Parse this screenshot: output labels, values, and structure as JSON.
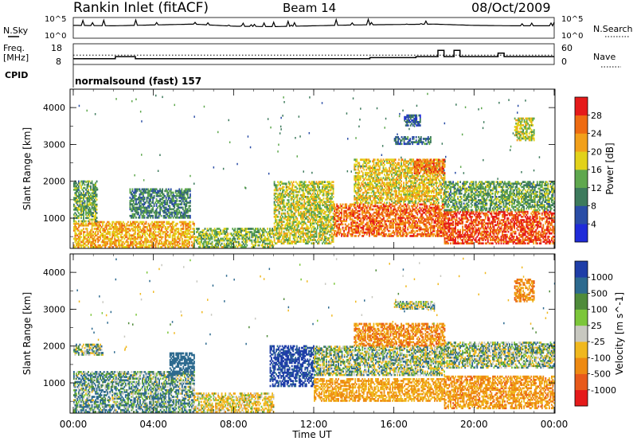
{
  "header": {
    "title": "Rankin Inlet (fitACF)",
    "beam": "Beam 14",
    "date": "08/Oct/2009"
  },
  "strip_labels": {
    "nsky": "N.Sky",
    "nsky_top": "10^5",
    "nsky_bottom": "10^0",
    "nsearch": "N.Search",
    "nsearch_top": "10^5",
    "nsearch_bottom": "10^0",
    "freq": "Freq.",
    "freq_unit": "[MHz]",
    "freq_top": "18",
    "freq_bottom": "8",
    "nave": "Nave",
    "nave_top": "60",
    "nave_bottom": "0",
    "cpid": "CPID",
    "cpid_value": "normalsound (fast) 157"
  },
  "colors": {
    "power_scale": [
      "#1f2bd9",
      "#2a4da6",
      "#3d7a5c",
      "#5fa84e",
      "#e2d21a",
      "#f2a01a",
      "#ee6b12",
      "#e51a1a"
    ],
    "velocity_scale": [
      "#1f3ea8",
      "#2d6a8f",
      "#4f8b3a",
      "#7cc63a",
      "#c8c8c0",
      "#f0b81e",
      "#ee8a12",
      "#e8591a",
      "#e51a1a"
    ],
    "ground_scatter": "#bdbdb5"
  },
  "chart_data": [
    {
      "type": "line",
      "name": "N.Sky",
      "x": [
        "00:00",
        "02:00",
        "04:00",
        "06:00",
        "08:00",
        "10:00",
        "12:00",
        "14:00",
        "16:00",
        "18:00",
        "20:00",
        "22:00",
        "00:00"
      ],
      "values": [
        3.1,
        3.0,
        3.2,
        3.4,
        2.9,
        2.8,
        3.0,
        3.2,
        3.3,
        3.4,
        3.1,
        3.0,
        3.0
      ],
      "ylim": [
        0,
        5
      ],
      "ylabel": "N.Sky"
    },
    {
      "type": "line",
      "name": "Freq",
      "x_hours": [
        0,
        2.1,
        2.1,
        3.1,
        3.1,
        14.8,
        14.8,
        17.1,
        17.1,
        18.2,
        18.2,
        18.5,
        18.5,
        19.0,
        19.0,
        19.3,
        19.3,
        21.2,
        21.2,
        21.5,
        21.5,
        24
      ],
      "values": [
        10.8,
        10.8,
        11.8,
        11.8,
        10.8,
        10.8,
        11.3,
        11.3,
        11.8,
        11.8,
        14.8,
        14.8,
        11.8,
        11.8,
        14.8,
        14.8,
        11.8,
        11.8,
        13.5,
        13.5,
        11.8,
        11.8
      ],
      "nave_reference": 27,
      "ylim": [
        8,
        18
      ],
      "ylabel": "Freq. [MHz]"
    },
    {
      "type": "heatmap",
      "title": "Power",
      "xlabel": "Time UT",
      "ylabel": "Slant Range [km]",
      "xlim": [
        0,
        24
      ],
      "ylim": [
        180,
        4500
      ],
      "xticks": [
        "00:00",
        "04:00",
        "08:00",
        "12:00",
        "16:00",
        "20:00",
        "00:00"
      ],
      "yticks": [
        "1000",
        "2000",
        "3000",
        "4000"
      ],
      "colorbar_label": "Power [dB]",
      "colorbar_ticks": [
        "4",
        "8",
        "12",
        "16",
        "20",
        "24",
        "28"
      ],
      "clim": [
        0,
        30
      ],
      "regions": [
        {
          "t0": 0.0,
          "t1": 6.0,
          "r0": 200,
          "r1": 900,
          "value": 20
        },
        {
          "t0": 0.0,
          "t1": 1.2,
          "r0": 900,
          "r1": 2000,
          "value": 12
        },
        {
          "t0": 2.8,
          "t1": 5.8,
          "r0": 1000,
          "r1": 1800,
          "value": 10
        },
        {
          "t0": 6.0,
          "t1": 10.0,
          "r0": 200,
          "r1": 700,
          "value": 14
        },
        {
          "t0": 10.0,
          "t1": 13.0,
          "r0": 300,
          "r1": 2000,
          "value": 16
        },
        {
          "t0": 13.0,
          "t1": 18.5,
          "r0": 500,
          "r1": 1400,
          "value": 24
        },
        {
          "t0": 14.0,
          "t1": 18.5,
          "r0": 1400,
          "r1": 2600,
          "value": 18
        },
        {
          "t0": 17.0,
          "t1": 18.5,
          "r0": 2200,
          "r1": 2600,
          "value": 24
        },
        {
          "t0": 18.5,
          "t1": 24.0,
          "r0": 300,
          "r1": 1200,
          "value": 26
        },
        {
          "t0": 18.5,
          "t1": 24.0,
          "r0": 1200,
          "r1": 2000,
          "value": 12
        },
        {
          "t0": 16.0,
          "t1": 17.8,
          "r0": 3000,
          "r1": 3200,
          "value": 8
        },
        {
          "t0": 16.5,
          "t1": 17.3,
          "r0": 3500,
          "r1": 3800,
          "value": 6
        },
        {
          "t0": 22.0,
          "t1": 23.0,
          "r0": 3100,
          "r1": 3700,
          "value": 16
        }
      ]
    },
    {
      "type": "heatmap",
      "title": "Velocity",
      "xlabel": "Time UT",
      "ylabel": "Slant Range [km]",
      "xlim": [
        0,
        24
      ],
      "ylim": [
        180,
        4500
      ],
      "xticks": [
        "00:00",
        "04:00",
        "08:00",
        "12:00",
        "16:00",
        "20:00",
        "00:00"
      ],
      "yticks": [
        "1000",
        "2000",
        "3000",
        "4000"
      ],
      "colorbar_label": "Velocity [m s^-1]",
      "colorbar_ticks": [
        "1000",
        "500",
        "100",
        "25",
        "-25",
        "-100",
        "-500",
        "-1000"
      ],
      "clim": [
        -1000,
        1000
      ],
      "regions": [
        {
          "t0": 0.0,
          "t1": 6.0,
          "r0": 200,
          "r1": 1300,
          "value": 80
        },
        {
          "t0": 0.0,
          "t1": 1.5,
          "r0": 1750,
          "r1": 2050,
          "value": 0
        },
        {
          "t0": 4.8,
          "t1": 6.0,
          "r0": 1200,
          "r1": 1800,
          "value": 300
        },
        {
          "t0": 6.0,
          "t1": 10.0,
          "r0": 200,
          "r1": 700,
          "value": -150
        },
        {
          "t0": 9.8,
          "t1": 12.0,
          "r0": 900,
          "r1": 2000,
          "value": 600
        },
        {
          "t0": 12.0,
          "t1": 18.5,
          "r0": 500,
          "r1": 1100,
          "value": -300
        },
        {
          "t0": 12.0,
          "t1": 18.5,
          "r0": 1200,
          "r1": 2000,
          "value": 0
        },
        {
          "t0": 14.0,
          "t1": 18.5,
          "r0": 2000,
          "r1": 2600,
          "value": -400
        },
        {
          "t0": 18.5,
          "t1": 24.0,
          "r0": 300,
          "r1": 1200,
          "value": -350
        },
        {
          "t0": 18.5,
          "t1": 24.0,
          "r0": 1400,
          "r1": 2100,
          "value": 0
        },
        {
          "t0": 16.0,
          "t1": 18.0,
          "r0": 3000,
          "r1": 3200,
          "value": 0
        },
        {
          "t0": 22.0,
          "t1": 23.0,
          "r0": 3200,
          "r1": 3800,
          "value": -400
        }
      ]
    }
  ]
}
